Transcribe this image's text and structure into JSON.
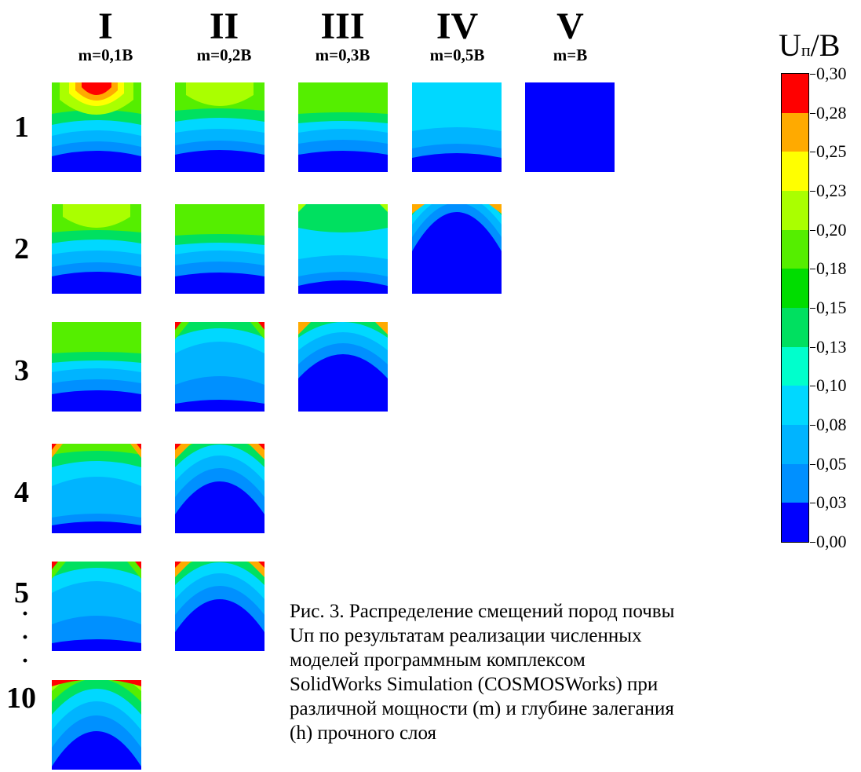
{
  "columns": [
    {
      "roman": "I",
      "m": "m=0,1B"
    },
    {
      "roman": "II",
      "m": "m=0,2B"
    },
    {
      "roman": "III",
      "m": "m=0,3B"
    },
    {
      "roman": "IV",
      "m": "m=0,5B"
    },
    {
      "roman": "V",
      "m": "m=B"
    }
  ],
  "rows": [
    "1",
    "2",
    "3",
    "4",
    "5",
    "10"
  ],
  "row_dots": "·",
  "legend": {
    "title_main": "U",
    "title_sub": "п",
    "title_rest": "/B",
    "ticks": [
      "0,30",
      "0,28",
      "0,25",
      "0,23",
      "0,20",
      "0,18",
      "0,15",
      "0,13",
      "0,10",
      "0,08",
      "0,05",
      "0,03",
      "0,00"
    ],
    "colors": [
      "#ff0000",
      "#ffaa00",
      "#ffff00",
      "#aaff00",
      "#55ee00",
      "#00dd00",
      "#00e060",
      "#00ffcc",
      "#00d8ff",
      "#00b4ff",
      "#0090ff",
      "#0000ff"
    ]
  },
  "caption": {
    "lines": [
      "Рис. 3. Распределение смещений пород почвы",
      "Uп по результатам реализации численных",
      "моделей программным комплексом",
      "SolidWorks Simulation (COSMOSWorks) при",
      "различной мощности (m) и глубине залегания",
      "(h) прочного слоя"
    ]
  }
}
